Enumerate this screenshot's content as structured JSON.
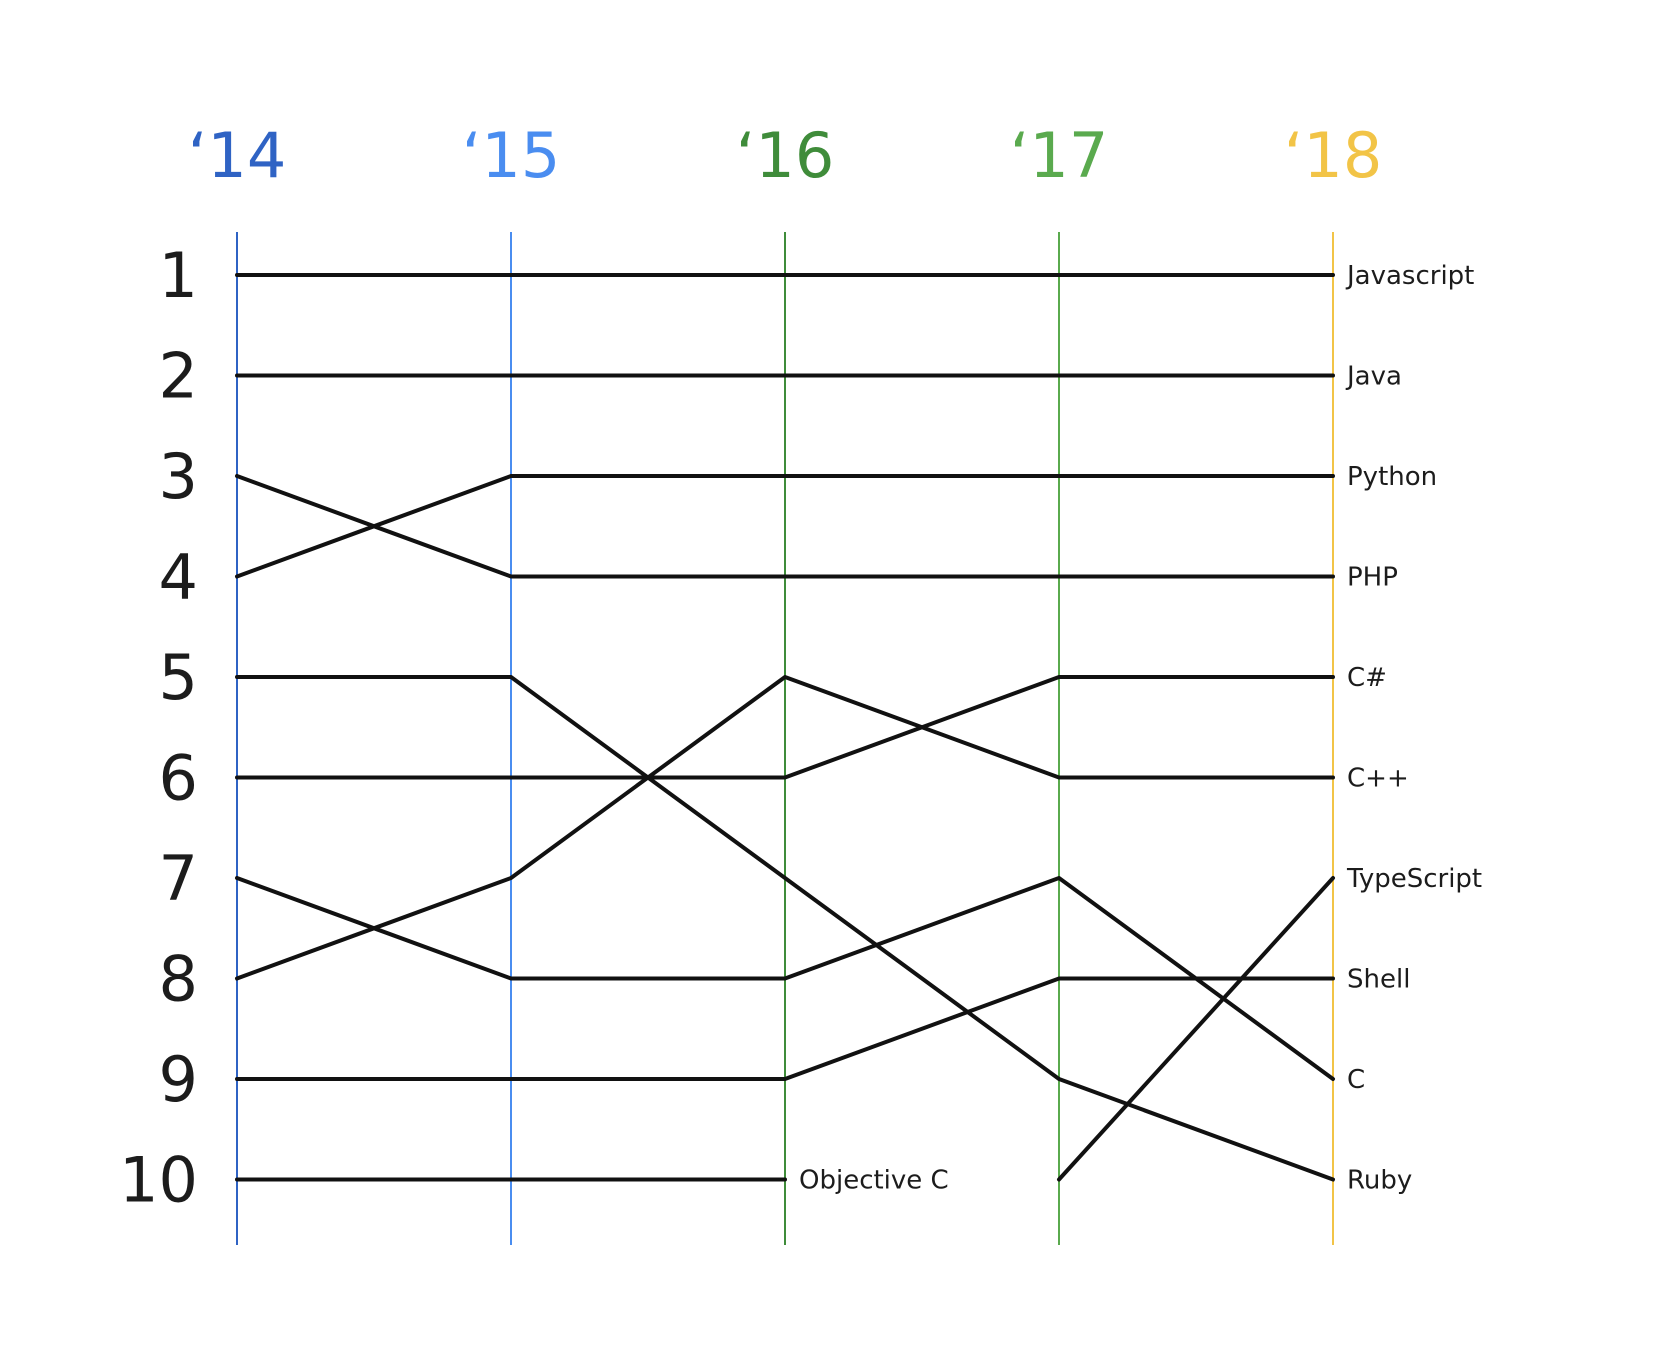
{
  "chart_data": {
    "type": "line",
    "title": "",
    "xlabel": "",
    "ylabel": "",
    "x": [
      "‘14",
      "‘15",
      "‘16",
      "‘17",
      "‘18"
    ],
    "x_colors": [
      "#2f63c4",
      "#4a8df0",
      "#3f8c3a",
      "#5aaa4e",
      "#f2c447"
    ],
    "y_ticks": [
      "1",
      "2",
      "3",
      "4",
      "5",
      "6",
      "7",
      "8",
      "9",
      "10"
    ],
    "ylim": [
      1,
      10
    ],
    "y_inverted": true,
    "series": [
      {
        "name": "Javascript",
        "values": [
          1,
          1,
          1,
          1,
          1
        ]
      },
      {
        "name": "Java",
        "values": [
          2,
          2,
          2,
          2,
          2
        ]
      },
      {
        "name": "Python",
        "values": [
          4,
          3,
          3,
          3,
          3
        ]
      },
      {
        "name": "PHP",
        "values": [
          3,
          4,
          4,
          4,
          4
        ]
      },
      {
        "name": "C++",
        "values": [
          8,
          7,
          5,
          6,
          6
        ]
      },
      {
        "name": "C#",
        "values": [
          6,
          6,
          6,
          5,
          5
        ]
      },
      {
        "name": "TypeScript",
        "values": [
          null,
          null,
          null,
          10,
          7
        ]
      },
      {
        "name": "Shell",
        "values": [
          9,
          9,
          9,
          8,
          8
        ]
      },
      {
        "name": "C",
        "values": [
          7,
          8,
          8,
          7,
          9
        ]
      },
      {
        "name": "Ruby",
        "values": [
          5,
          5,
          7,
          9,
          10
        ]
      },
      {
        "name": "Objective C",
        "values": [
          10,
          10,
          10,
          null,
          null
        ]
      }
    ]
  }
}
